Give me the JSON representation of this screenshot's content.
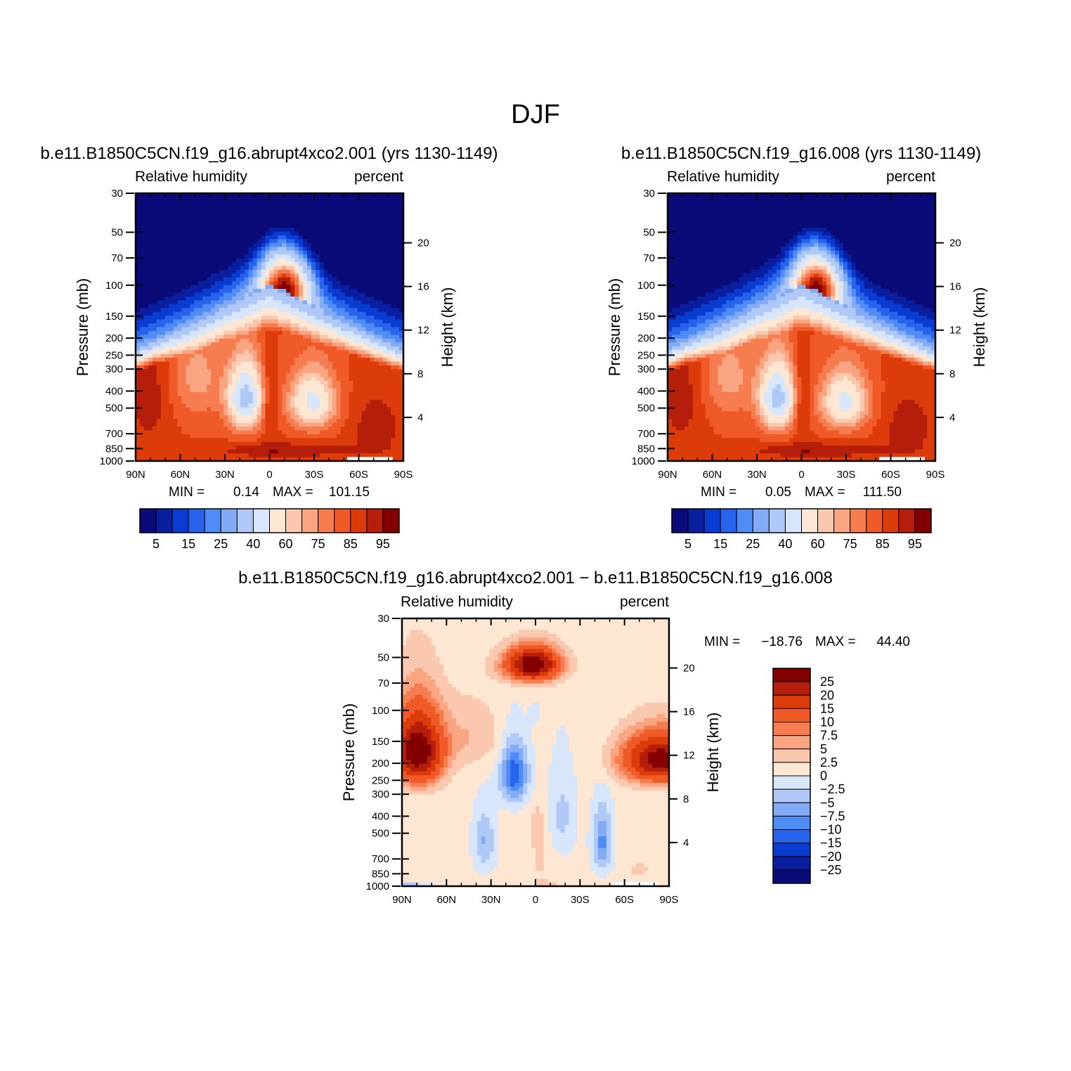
{
  "figure": {
    "title": "DJF"
  },
  "palettes": {
    "absolute": [
      "#0a0a78",
      "#0a1ea0",
      "#0a3cd2",
      "#2864eb",
      "#508cf5",
      "#82aaf5",
      "#afc8f5",
      "#d7e6fa",
      "#fde6d2",
      "#fac8af",
      "#faa582",
      "#f57d50",
      "#f05a28",
      "#dc3c0a",
      "#b41e0a",
      "#820000"
    ],
    "difference": [
      "#0a0a78",
      "#0a1ea0",
      "#0a3cd2",
      "#2864eb",
      "#508cf5",
      "#82aaf5",
      "#afc8f5",
      "#d7e6fa",
      "#fde6d2",
      "#fac8af",
      "#faa582",
      "#f57d50",
      "#f05a28",
      "#dc3c0a",
      "#b41e0a",
      "#820000"
    ]
  },
  "panels": [
    {
      "id": "case",
      "title": "b.e11.B1850C5CN.f19_g16.abrupt4xco2.001 (yrs 1130-1149)",
      "left_label": "Relative humidity",
      "right_label": "percent",
      "ylabel_left": "Pressure (mb)",
      "ylabel_right": "Height (km)",
      "min_label": "MIN =",
      "min_value": "0.14",
      "max_label": "MAX =",
      "max_value": "101.15",
      "colorbar_labels": [
        "5",
        "15",
        "25",
        "40",
        "60",
        "75",
        "85",
        "95"
      ]
    },
    {
      "id": "control",
      "title": "b.e11.B1850C5CN.f19_g16.008 (yrs 1130-1149)",
      "left_label": "Relative humidity",
      "right_label": "percent",
      "ylabel_left": "Pressure (mb)",
      "ylabel_right": "Height (km)",
      "min_label": "MIN =",
      "min_value": "0.05",
      "max_label": "MAX =",
      "max_value": "111.50",
      "colorbar_labels": [
        "5",
        "15",
        "25",
        "40",
        "60",
        "75",
        "85",
        "95"
      ]
    },
    {
      "id": "diff",
      "title": "b.e11.B1850C5CN.f19_g16.abrupt4xco2.001 − b.e11.B1850C5CN.f19_g16.008",
      "left_label": "Relative humidity",
      "right_label": "percent",
      "ylabel_left": "Pressure (mb)",
      "ylabel_right": "Height (km)",
      "min_label": "MIN =",
      "min_value": "−18.76",
      "max_label": "MAX =",
      "max_value": "44.40",
      "colorbar_labels": [
        "25",
        "20",
        "15",
        "10",
        "7.5",
        "5",
        "2.5",
        "0",
        "−2.5",
        "−5",
        "−7.5",
        "−10",
        "−15",
        "−20",
        "−25"
      ]
    }
  ],
  "chart_data": [
    {
      "type": "heatmap",
      "title": "b.e11.B1850C5CN.f19_g16.abrupt4xco2.001 (yrs 1130-1149)",
      "variable": "Relative humidity",
      "units": "percent",
      "xlabel": "",
      "ylabel": "Pressure (mb)",
      "ylabel_right": "Height (km)",
      "x_ticks": [
        "90N",
        "60N",
        "30N",
        "0",
        "30S",
        "60S",
        "90S"
      ],
      "y_ticks": [
        30,
        50,
        70,
        100,
        150,
        200,
        250,
        300,
        400,
        500,
        700,
        850,
        1000
      ],
      "y_ticks_right": [
        20,
        16,
        12,
        8,
        4
      ],
      "y_scale": "log",
      "ylim": [
        1000,
        30
      ],
      "contour_levels": [
        5,
        10,
        15,
        20,
        25,
        30,
        40,
        50,
        60,
        65,
        70,
        75,
        80,
        85,
        90,
        95
      ],
      "min": 0.14,
      "max": 101.15
    },
    {
      "type": "heatmap",
      "title": "b.e11.B1850C5CN.f19_g16.008 (yrs 1130-1149)",
      "variable": "Relative humidity",
      "units": "percent",
      "xlabel": "",
      "ylabel": "Pressure (mb)",
      "ylabel_right": "Height (km)",
      "x_ticks": [
        "90N",
        "60N",
        "30N",
        "0",
        "30S",
        "60S",
        "90S"
      ],
      "y_ticks": [
        30,
        50,
        70,
        100,
        150,
        200,
        250,
        300,
        400,
        500,
        700,
        850,
        1000
      ],
      "y_ticks_right": [
        20,
        16,
        12,
        8,
        4
      ],
      "y_scale": "log",
      "ylim": [
        1000,
        30
      ],
      "contour_levels": [
        5,
        10,
        15,
        20,
        25,
        30,
        40,
        50,
        60,
        65,
        70,
        75,
        80,
        85,
        90,
        95
      ],
      "min": 0.05,
      "max": 111.5
    },
    {
      "type": "heatmap",
      "title": "b.e11.B1850C5CN.f19_g16.abrupt4xco2.001 − b.e11.B1850C5CN.f19_g16.008",
      "variable": "Relative humidity",
      "units": "percent",
      "xlabel": "",
      "ylabel": "Pressure (mb)",
      "ylabel_right": "Height (km)",
      "x_ticks": [
        "90N",
        "60N",
        "30N",
        "0",
        "30S",
        "60S",
        "90S"
      ],
      "y_ticks": [
        30,
        50,
        70,
        100,
        150,
        200,
        250,
        300,
        400,
        500,
        700,
        850,
        1000
      ],
      "y_ticks_right": [
        20,
        16,
        12,
        8,
        4
      ],
      "y_scale": "log",
      "ylim": [
        1000,
        30
      ],
      "contour_levels": [
        -25,
        -20,
        -15,
        -10,
        -7.5,
        -5,
        -2.5,
        0,
        2.5,
        5,
        7.5,
        10,
        15,
        20,
        25
      ],
      "min": -18.76,
      "max": 44.4
    }
  ]
}
